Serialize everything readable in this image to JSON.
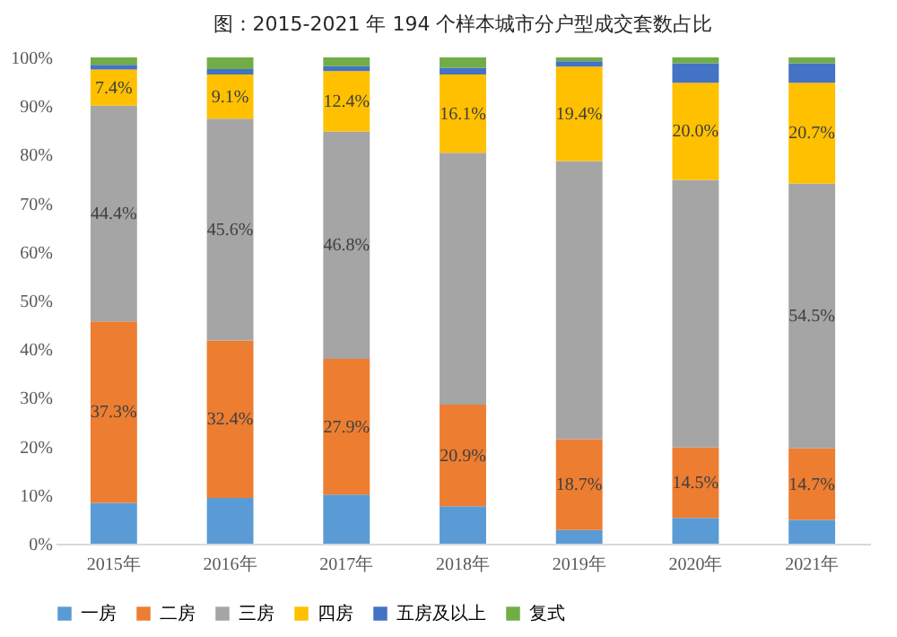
{
  "chart_data": {
    "type": "bar",
    "stacked": true,
    "title": "图：2015-2021 年 194 个样本城市分户型成交套数占比",
    "categories": [
      "2015年",
      "2016年",
      "2017年",
      "2018年",
      "2019年",
      "2020年",
      "2021年"
    ],
    "series": [
      {
        "name": "一房",
        "color": "#5b9bd5",
        "values": [
          8.4,
          9.4,
          10.1,
          7.7,
          2.8,
          5.3,
          4.9
        ]
      },
      {
        "name": "二房",
        "color": "#ed7d31",
        "values": [
          37.3,
          32.4,
          27.9,
          20.9,
          18.7,
          14.5,
          14.7
        ],
        "value_labels": [
          "37.3%",
          "32.4%",
          "27.9%",
          "20.9%",
          "18.7%",
          "14.5%",
          "14.7%"
        ]
      },
      {
        "name": "三房",
        "color": "#a5a5a5",
        "values": [
          44.4,
          45.6,
          46.8,
          51.8,
          57.2,
          55.0,
          54.5
        ],
        "value_labels": [
          "44.4%",
          "45.6%",
          "46.8%",
          null,
          null,
          null,
          "54.5%"
        ]
      },
      {
        "name": "四房",
        "color": "#ffc000",
        "values": [
          7.4,
          9.1,
          12.4,
          16.1,
          19.4,
          20.0,
          20.7
        ],
        "value_labels": [
          "7.4%",
          "9.1%",
          "12.4%",
          "16.1%",
          "19.4%",
          "20.0%",
          "20.7%"
        ]
      },
      {
        "name": "五房及以上",
        "color": "#4472c4",
        "values": [
          1.0,
          1.1,
          1.0,
          1.4,
          1.1,
          4.0,
          4.0
        ]
      },
      {
        "name": "复式",
        "color": "#70ad47",
        "values": [
          1.5,
          2.4,
          1.8,
          2.1,
          0.8,
          1.2,
          1.2
        ]
      }
    ],
    "ylim": [
      0,
      100
    ],
    "yticks": [
      {
        "value": 0,
        "label": "0%"
      },
      {
        "value": 10,
        "label": "10%"
      },
      {
        "value": 20,
        "label": "20%"
      },
      {
        "value": 30,
        "label": "30%"
      },
      {
        "value": 40,
        "label": "40%"
      },
      {
        "value": 50,
        "label": "50%"
      },
      {
        "value": 60,
        "label": "60%"
      },
      {
        "value": 70,
        "label": "70%"
      },
      {
        "value": 80,
        "label": "80%"
      },
      {
        "value": 90,
        "label": "90%"
      },
      {
        "value": 100,
        "label": "100%"
      }
    ],
    "grid": false,
    "legend": "bottom"
  }
}
